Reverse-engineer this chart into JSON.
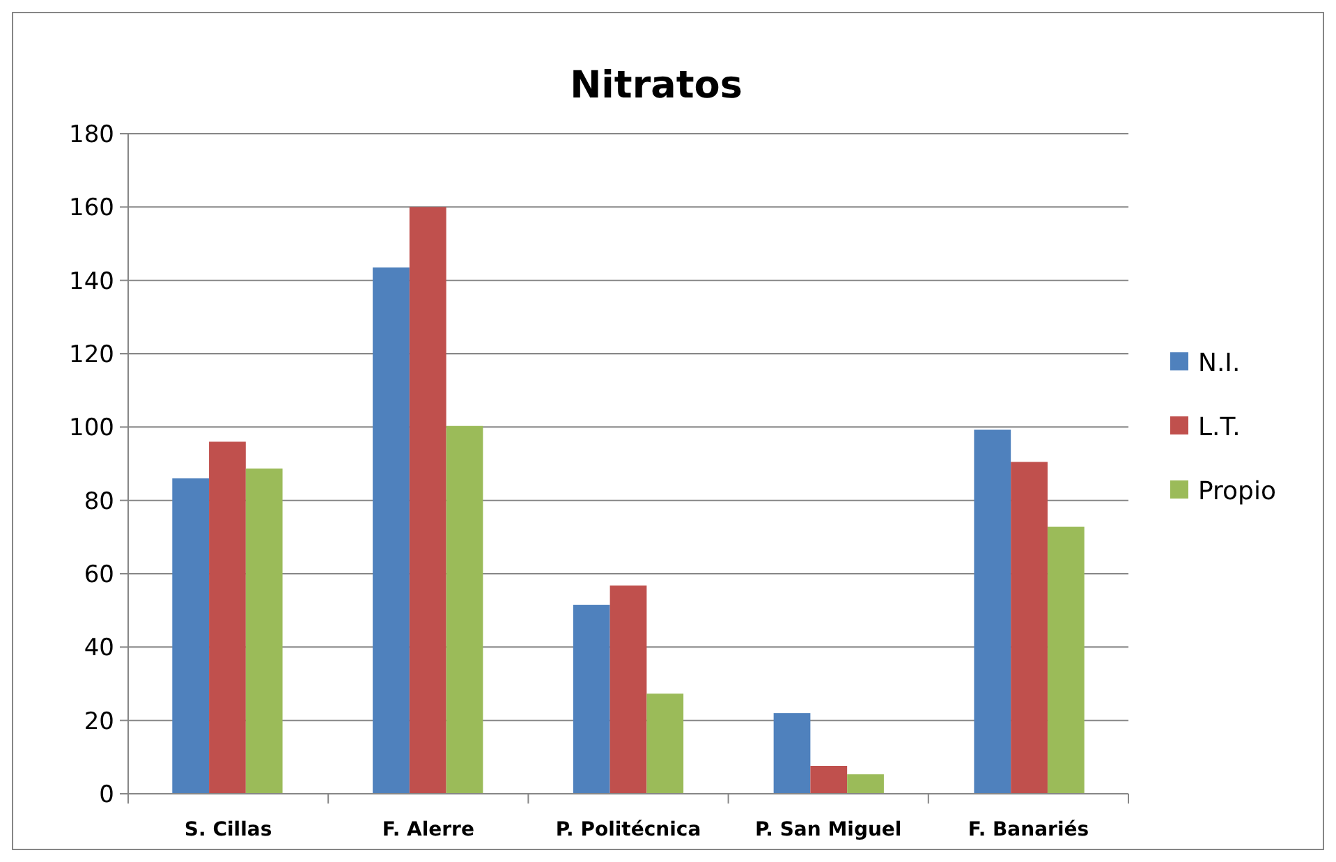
{
  "chart_data": {
    "type": "bar",
    "title": "Nitratos",
    "categories": [
      "S. Cillas",
      "F. Alerre",
      "P. Politécnica",
      "P. San Miguel",
      "F. Banariés"
    ],
    "series": [
      {
        "name": "N.I.",
        "color": "#4f81bd",
        "values": [
          86,
          143.5,
          51.5,
          22,
          99.3
        ]
      },
      {
        "name": "L.T.",
        "color": "#c0504d",
        "values": [
          96,
          160,
          56.8,
          7.6,
          90.5
        ]
      },
      {
        "name": "Propio",
        "color": "#9bbb59",
        "values": [
          88.7,
          100.3,
          27.3,
          5.3,
          72.8
        ]
      }
    ],
    "ylim": [
      0,
      180
    ],
    "yticks": [
      0,
      20,
      40,
      60,
      80,
      100,
      120,
      140,
      160,
      180
    ],
    "grid": "y",
    "legend": "right"
  }
}
